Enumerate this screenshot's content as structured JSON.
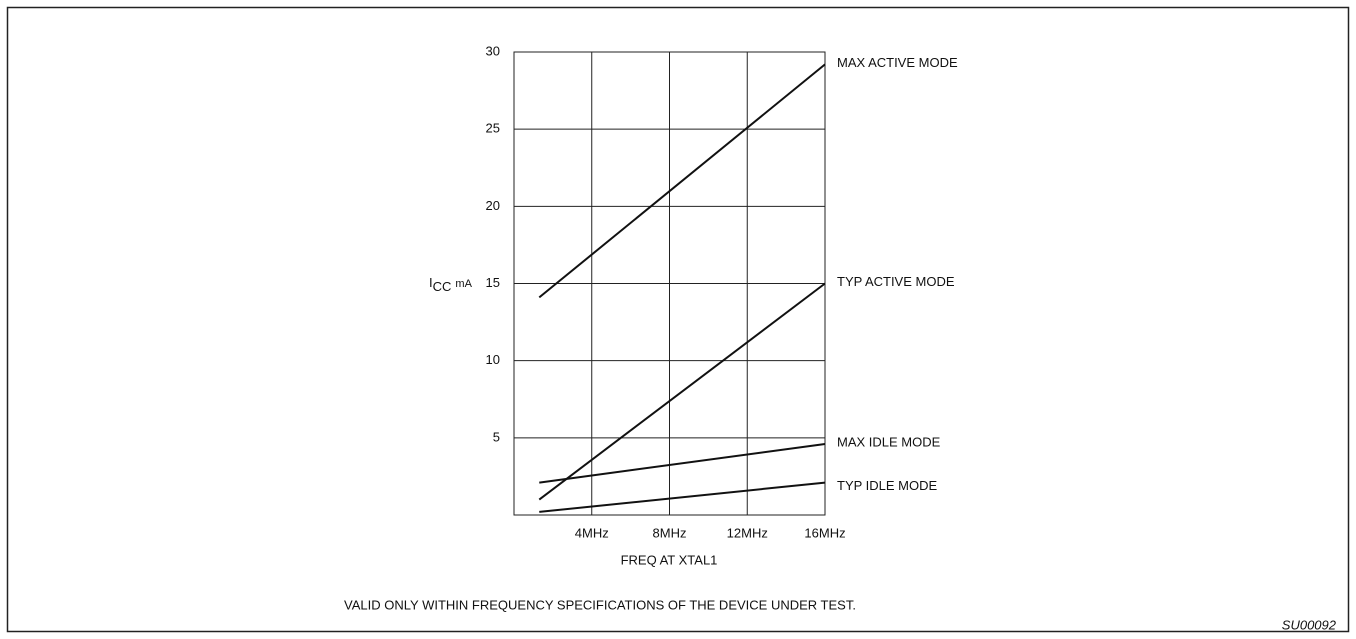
{
  "chart_data": {
    "type": "line",
    "ylabel_symbol": "I",
    "ylabel_subscript": "CC",
    "ylabel_unit": "mA",
    "xlabel": "FREQ AT XTAL1",
    "footnote": "VALID ONLY WITHIN FREQUENCY SPECIFICATIONS OF THE DEVICE UNDER TEST.",
    "figure_code": "SU00092",
    "x": [
      1.3,
      16
    ],
    "series": [
      {
        "name": "MAX ACTIVE MODE",
        "color": "#111111",
        "values": [
          14.1,
          29.2
        ]
      },
      {
        "name": "TYP ACTIVE MODE",
        "color": "#111111",
        "values": [
          1.0,
          15.0
        ]
      },
      {
        "name": "MAX IDLE MODE",
        "color": "#111111",
        "values": [
          2.1,
          4.6
        ]
      },
      {
        "name": "TYP IDLE MODE",
        "color": "#111111",
        "values": [
          0.2,
          2.1
        ]
      }
    ],
    "xlim": [
      0,
      16
    ],
    "xticks": [
      {
        "value": 4,
        "label": "4MHz"
      },
      {
        "value": 8,
        "label": "8MHz"
      },
      {
        "value": 12,
        "label": "12MHz"
      },
      {
        "value": 16,
        "label": "16MHz"
      }
    ],
    "ylim": [
      0,
      30
    ],
    "yticks": [
      5,
      10,
      15,
      20,
      25,
      30
    ],
    "grid": true
  }
}
